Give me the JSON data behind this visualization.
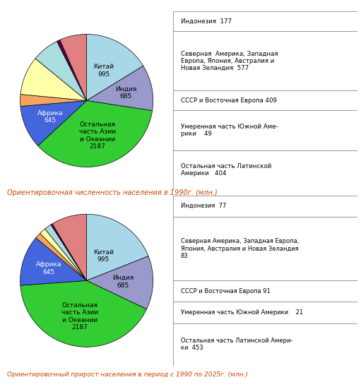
{
  "top_caption": "Ориентировочная численность населения в 1990г. (млн.)",
  "bottom_caption": "Ориентировочный прирост населения в период с 1990 по 2025г. (млн.)",
  "main_labels": [
    "Китай\n995",
    "Индия\n685",
    "Остальная\nчасть Азии\nи Океании\n2187",
    "Африка\n645"
  ],
  "main_values": [
    995,
    685,
    2187,
    645
  ],
  "main_colors": [
    "#a8d8e8",
    "#9999cc",
    "#33cc33",
    "#4466dd"
  ],
  "main_label_colors": [
    "#000000",
    "#000000",
    "#000000",
    "#ffffff"
  ],
  "small_values1": [
    177,
    577,
    409,
    49,
    404
  ],
  "small_values2": [
    77,
    83,
    91,
    21,
    453
  ],
  "small_colors": [
    "#f4a460",
    "#ffffaa",
    "#aadddd",
    "#550055",
    "#e08080"
  ],
  "legend1_items": [
    "Индонезия  177",
    "Северная  Америка, Западная\nЕвропа, Япония, Австралия и\nНовая Зеландия  577",
    "СССР и Восточная Европа 409",
    "Умеренная часть Южной Аме-\nрики    49",
    "Остальная часть Латинской\nАмерики   404"
  ],
  "legend2_items": [
    "Индонезия  77",
    "Северная Америка, Западная Европа,\nЯпония, Австралия и Новая Зеландия\n83",
    "СССР и Восточная Европа 91",
    "Умеренная часть Южной Америки    21",
    "Остальная часть Латинской Амери-\nки  453"
  ],
  "text_color": "#cc4400",
  "bg_color": "#ffffff",
  "startangle": 90,
  "pie1_label_rs": [
    0.52,
    0.6,
    0.55,
    0.6
  ],
  "pie2_label_rs": [
    0.45,
    0.55,
    0.55,
    0.6
  ]
}
